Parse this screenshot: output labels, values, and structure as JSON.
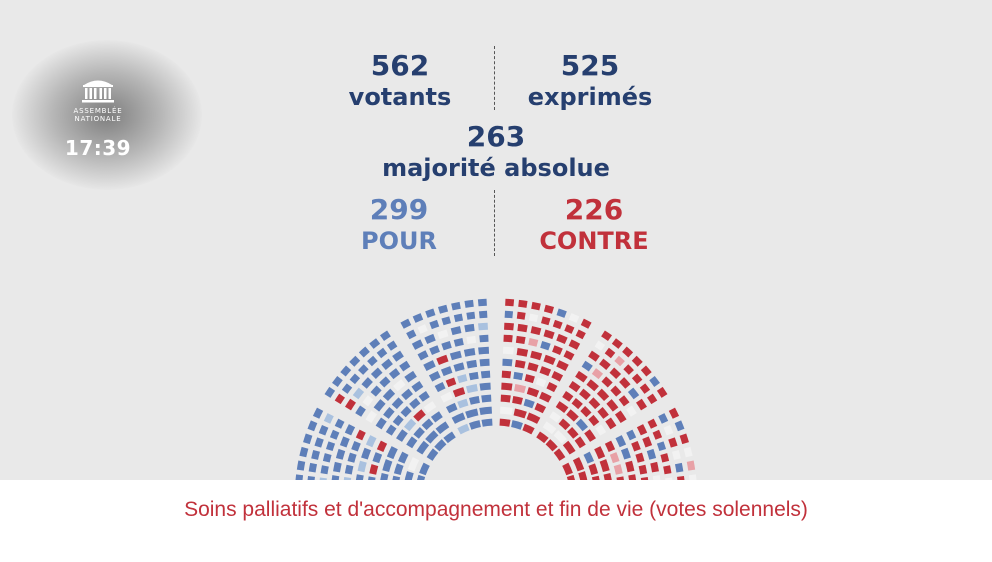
{
  "channel": {
    "logo_text": "ASSEMBLÉE NATIONALE",
    "logo_icon": "assemblee-nationale-building-icon",
    "clock": "17:39"
  },
  "results": {
    "votants": {
      "value": "562",
      "label": "votants"
    },
    "exprimes": {
      "value": "525",
      "label": "exprimés"
    },
    "majorite": {
      "value": "263",
      "label": "majorité absolue"
    },
    "pour": {
      "value": "299",
      "label": "POUR"
    },
    "contre": {
      "value": "226",
      "label": "CONTRE"
    }
  },
  "colors": {
    "navy": "#263f6f",
    "pour": "#5e7fb9",
    "contre": "#c1313b",
    "pour_light": "#a9c1df",
    "contre_light": "#e8a1a6",
    "abstention": "#f2f2f2",
    "background": "#e9e9e9"
  },
  "hemicycle": {
    "icon": "hemicycle-seat-chart",
    "pour_seats": 299,
    "contre_seats": 226
  },
  "caption": "Soins palliatifs et d'accompagnement et fin de vie (votes solennels)"
}
